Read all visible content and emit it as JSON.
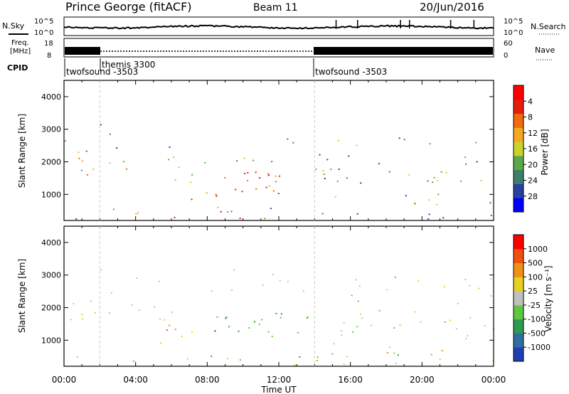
{
  "header": {
    "station": "Prince George (fitACF)",
    "beam": "Beam 11",
    "date": "20/Jun/2016"
  },
  "noise_panel": {
    "left_label": "N.Sky",
    "left_ticks": [
      "10^5",
      "10^0"
    ],
    "right_ticks": [
      "10^5",
      "10^0"
    ],
    "right_label": "N.Search"
  },
  "freq_panel": {
    "left_label_line1": "Freq.",
    "left_label_line2": "[MHz]",
    "left_ticks": [
      "18",
      "8"
    ],
    "right_ticks": [
      "60",
      "0"
    ],
    "right_label": "Nave"
  },
  "cpid_panel": {
    "label": "CPID",
    "programs": [
      {
        "name": "twofsound",
        "id": "-3503",
        "start_hour": 0
      },
      {
        "name": "themis",
        "id": "3300",
        "start_hour": 2
      },
      {
        "name": "twofsound",
        "id": "-3503",
        "start_hour": 14
      }
    ]
  },
  "chart_data": [
    {
      "type": "heatmap",
      "quantity": "Power",
      "ylabel": "Slant Range [km]",
      "ylim": [
        200,
        4500
      ],
      "yticks": [
        1000,
        2000,
        3000,
        4000
      ],
      "xlim": [
        0,
        24
      ],
      "colorbar": {
        "label": "Power [dB]",
        "ticks": [
          "4",
          "8",
          "12",
          "16",
          "20",
          "24",
          "28"
        ],
        "colors": [
          "#0000ff",
          "#2a3f9f",
          "#3d7f6a",
          "#5aa84a",
          "#c8d42a",
          "#f5a623",
          "#f06a10",
          "#e61e0a",
          "#ff0000"
        ]
      }
    },
    {
      "type": "heatmap",
      "quantity": "Velocity",
      "ylabel": "Slant Range [km]",
      "ylim": [
        200,
        4500
      ],
      "yticks": [
        1000,
        2000,
        3000,
        4000
      ],
      "xlim": [
        0,
        24
      ],
      "colorbar": {
        "label": "Velocity [m s⁻¹]",
        "ticks": [
          "1000",
          "500",
          "100",
          "25",
          "-25",
          "-100",
          "-500",
          "-1000"
        ],
        "colors": [
          "#1f3fb0",
          "#2f6fa0",
          "#2f9a50",
          "#60c840",
          "#c0c0c0",
          "#e8d020",
          "#f09018",
          "#f05010",
          "#ff0000"
        ]
      }
    }
  ],
  "xaxis": {
    "label": "Time UT",
    "ticks": [
      "00:00",
      "04:00",
      "08:00",
      "12:00",
      "16:00",
      "20:00",
      "00:00"
    ]
  }
}
